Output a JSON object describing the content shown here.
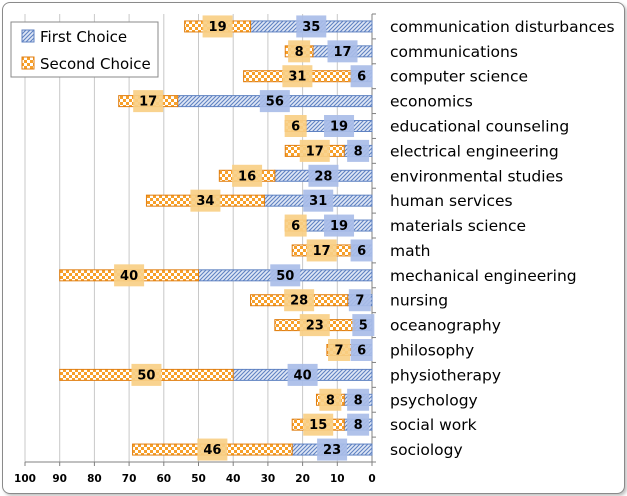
{
  "chart_data": {
    "type": "bar",
    "orientation": "horizontal-reversed",
    "title": "",
    "xlabel": "",
    "ylabel": "",
    "xlim": [
      0,
      100
    ],
    "x_ticks": [
      "100",
      "90",
      "80",
      "70",
      "60",
      "50",
      "40",
      "30",
      "20",
      "10",
      "0"
    ],
    "grid": true,
    "legend_position": "top-left",
    "stacked": true,
    "categories": [
      "communication disturbances",
      "communications",
      "computer science",
      "economics",
      "educational counseling",
      "electrical engineering",
      "environmental studies",
      "human services",
      "materials science",
      "math",
      "mechanical engineering",
      "nursing",
      "oceanography",
      "philosophy",
      "physiotherapy",
      "psychology",
      "social work",
      "sociology"
    ],
    "series": [
      {
        "name": "First Choice",
        "pattern": "diagonal-stripes",
        "color": "#7f9fd0",
        "label_bg": "#a9bde8",
        "values": [
          35,
          17,
          6,
          56,
          19,
          8,
          28,
          31,
          19,
          6,
          50,
          7,
          5,
          6,
          40,
          8,
          8,
          23
        ]
      },
      {
        "name": "Second Choice",
        "pattern": "checker",
        "color": "#f79a1e",
        "label_bg": "#f8cf86",
        "values": [
          19,
          8,
          31,
          17,
          6,
          17,
          16,
          34,
          6,
          17,
          40,
          28,
          23,
          7,
          50,
          8,
          15,
          46
        ]
      }
    ]
  }
}
